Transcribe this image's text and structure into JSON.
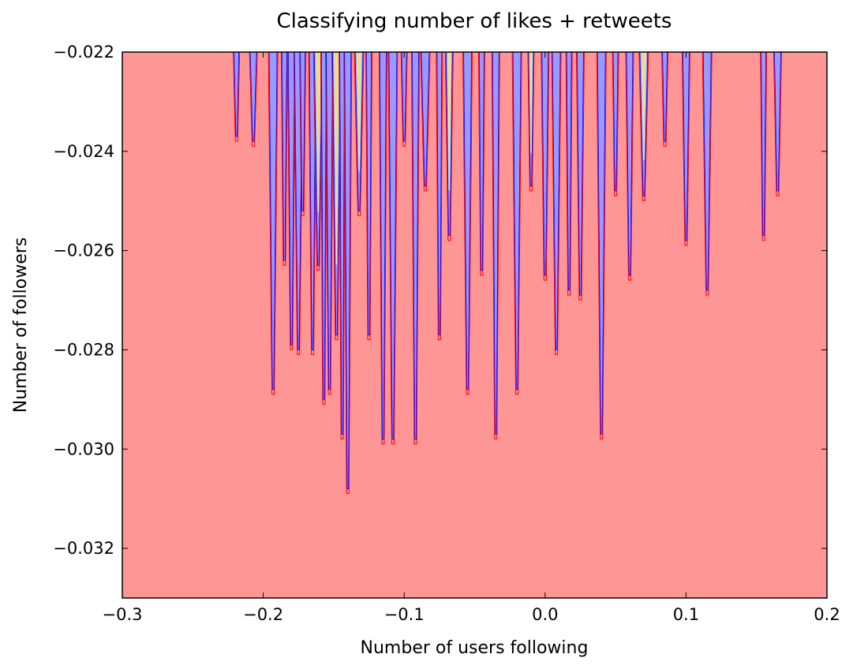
{
  "chart_data": {
    "type": "contour",
    "title": "Classifying number of likes + retweets",
    "xlabel": "Number of users following",
    "ylabel": "Number of followers",
    "xlim": [
      -0.3,
      0.2
    ],
    "ylim": [
      -0.033,
      -0.022
    ],
    "xticks": [
      -0.3,
      -0.2,
      -0.1,
      0.0,
      0.1,
      0.2
    ],
    "xtick_labels": [
      "−0.3",
      "−0.2",
      "−0.1",
      "0.0",
      "0.1",
      "0.2"
    ],
    "yticks": [
      -0.022,
      -0.024,
      -0.026,
      -0.028,
      -0.03,
      -0.032
    ],
    "ytick_labels": [
      "−0.022",
      "−0.024",
      "−0.026",
      "−0.028",
      "−0.030",
      "−0.032"
    ],
    "grid": false,
    "colors": {
      "background_class": "#ff9696",
      "class_2": "#9999ff",
      "class_3": "#b5f0d8",
      "class_4": "#f2d98c",
      "contour_red": "#ff0000",
      "contour_blue": "#0000ff"
    },
    "spikes": [
      {
        "x": -0.219,
        "y_bottom": -0.0237,
        "class": "blue"
      },
      {
        "x": -0.207,
        "y_bottom": -0.0238,
        "class": "blue"
      },
      {
        "x": -0.193,
        "y_bottom": -0.0288,
        "class": "blue"
      },
      {
        "x": -0.185,
        "y_bottom": -0.0262,
        "class": "blue"
      },
      {
        "x": -0.18,
        "y_bottom": -0.0279,
        "class": "blue"
      },
      {
        "x": -0.175,
        "y_bottom": -0.028,
        "class": "blue"
      },
      {
        "x": -0.172,
        "y_bottom": -0.0252,
        "class": "blue"
      },
      {
        "x": -0.165,
        "y_bottom": -0.028,
        "class": "blue"
      },
      {
        "x": -0.161,
        "y_bottom": -0.0263,
        "class": "yellow"
      },
      {
        "x": -0.157,
        "y_bottom": -0.029,
        "class": "blue"
      },
      {
        "x": -0.153,
        "y_bottom": -0.0288,
        "class": "blue"
      },
      {
        "x": -0.148,
        "y_bottom": -0.0277,
        "class": "yellow"
      },
      {
        "x": -0.144,
        "y_bottom": -0.0297,
        "class": "blue"
      },
      {
        "x": -0.14,
        "y_bottom": -0.0308,
        "class": "blue"
      },
      {
        "x": -0.132,
        "y_bottom": -0.0252,
        "class": "yellow"
      },
      {
        "x": -0.125,
        "y_bottom": -0.0277,
        "class": "blue"
      },
      {
        "x": -0.115,
        "y_bottom": -0.0298,
        "class": "blue"
      },
      {
        "x": -0.108,
        "y_bottom": -0.0298,
        "class": "blue"
      },
      {
        "x": -0.1,
        "y_bottom": -0.0238,
        "class": "blue"
      },
      {
        "x": -0.092,
        "y_bottom": -0.0298,
        "class": "blue"
      },
      {
        "x": -0.085,
        "y_bottom": -0.0247,
        "class": "blue"
      },
      {
        "x": -0.075,
        "y_bottom": -0.0277,
        "class": "blue"
      },
      {
        "x": -0.068,
        "y_bottom": -0.0257,
        "class": "yellow"
      },
      {
        "x": -0.055,
        "y_bottom": -0.0288,
        "class": "blue"
      },
      {
        "x": -0.045,
        "y_bottom": -0.0264,
        "class": "blue"
      },
      {
        "x": -0.035,
        "y_bottom": -0.0297,
        "class": "blue"
      },
      {
        "x": -0.02,
        "y_bottom": -0.0288,
        "class": "blue"
      },
      {
        "x": -0.01,
        "y_bottom": -0.0247,
        "class": "yellow"
      },
      {
        "x": 0.0,
        "y_bottom": -0.0265,
        "class": "blue"
      },
      {
        "x": 0.008,
        "y_bottom": -0.028,
        "class": "blue"
      },
      {
        "x": 0.017,
        "y_bottom": -0.0268,
        "class": "blue"
      },
      {
        "x": 0.025,
        "y_bottom": -0.0269,
        "class": "blue"
      },
      {
        "x": 0.04,
        "y_bottom": -0.0297,
        "class": "blue"
      },
      {
        "x": 0.05,
        "y_bottom": -0.0248,
        "class": "blue"
      },
      {
        "x": 0.06,
        "y_bottom": -0.0265,
        "class": "blue"
      },
      {
        "x": 0.07,
        "y_bottom": -0.0249,
        "class": "yellow"
      },
      {
        "x": 0.085,
        "y_bottom": -0.0238,
        "class": "blue"
      },
      {
        "x": 0.1,
        "y_bottom": -0.0258,
        "class": "blue"
      },
      {
        "x": 0.115,
        "y_bottom": -0.0268,
        "class": "blue"
      },
      {
        "x": 0.155,
        "y_bottom": -0.0257,
        "class": "blue"
      },
      {
        "x": 0.165,
        "y_bottom": -0.0248,
        "class": "blue"
      }
    ]
  }
}
